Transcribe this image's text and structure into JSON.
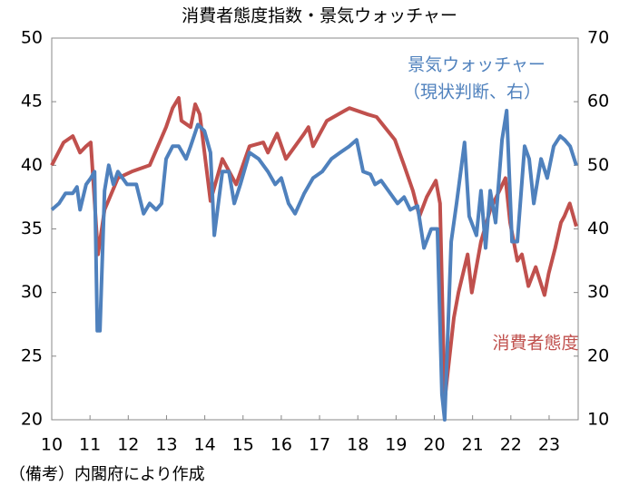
{
  "chart_data": {
    "type": "line",
    "title": "消費者態度指数・景気ウォッチャー",
    "note": "（備考）内閣府により作成",
    "xlim": [
      2010,
      2023.76
    ],
    "xticks": [
      {
        "value": 2010,
        "label": "10"
      },
      {
        "value": 2011,
        "label": "11"
      },
      {
        "value": 2012,
        "label": "12"
      },
      {
        "value": 2013,
        "label": "13"
      },
      {
        "value": 2014,
        "label": "14"
      },
      {
        "value": 2015,
        "label": "15"
      },
      {
        "value": 2016,
        "label": "16"
      },
      {
        "value": 2017,
        "label": "17"
      },
      {
        "value": 2018,
        "label": "18"
      },
      {
        "value": 2019,
        "label": "19"
      },
      {
        "value": 2020,
        "label": "20"
      },
      {
        "value": 2021,
        "label": "21"
      },
      {
        "value": 2022,
        "label": "22"
      },
      {
        "value": 2023,
        "label": "23"
      }
    ],
    "ylim": [
      20,
      50
    ],
    "yticks": [
      20,
      25,
      30,
      35,
      40,
      45,
      50
    ],
    "y2lim": [
      10,
      70
    ],
    "y2ticks": [
      10,
      20,
      30,
      40,
      50,
      60,
      70
    ],
    "series": [
      {
        "name": "消費者態度",
        "color": "#c0504d",
        "axis": "y",
        "x": [
          2010.0,
          2010.31,
          2010.55,
          2010.74,
          2010.9,
          2011.02,
          2011.21,
          2011.38,
          2011.73,
          2012.09,
          2012.56,
          2012.99,
          2013.16,
          2013.32,
          2013.39,
          2013.63,
          2013.75,
          2013.87,
          2014.15,
          2014.46,
          2014.82,
          2015.17,
          2015.53,
          2015.65,
          2015.89,
          2016.12,
          2016.36,
          2016.6,
          2016.71,
          2016.83,
          2017.19,
          2017.78,
          2018.26,
          2018.49,
          2018.97,
          2019.21,
          2019.44,
          2019.61,
          2019.8,
          2020.04,
          2020.15,
          2020.27,
          2020.51,
          2020.63,
          2020.87,
          2020.98,
          2021.22,
          2021.46,
          2021.7,
          2021.86,
          2021.98,
          2022.17,
          2022.29,
          2022.46,
          2022.65,
          2022.88,
          2022.99,
          2023.16,
          2023.31,
          2023.4,
          2023.54,
          2023.71
        ],
        "values": [
          40,
          41.8,
          42.3,
          41,
          41.5,
          41.8,
          33,
          36.5,
          39,
          39.5,
          40,
          43,
          44.5,
          45.3,
          43.5,
          43,
          44.8,
          44,
          37.2,
          40.5,
          38.5,
          41.5,
          41.8,
          41,
          42.5,
          40.5,
          41.5,
          42.5,
          43,
          41.5,
          43.5,
          44.5,
          44,
          43.8,
          42,
          40,
          38,
          36,
          37.5,
          38.8,
          37,
          21.5,
          28,
          30,
          33,
          30,
          34,
          36.5,
          38,
          39,
          35.5,
          32.5,
          33,
          30.5,
          32,
          29.8,
          31.5,
          33.5,
          35.5,
          36,
          37,
          35.2
        ]
      },
      {
        "name": "景気ウォッチャー",
        "sub": "（現状判断、右）",
        "color": "#4f81bd",
        "axis": "y2",
        "x": [
          2010.0,
          2010.19,
          2010.36,
          2010.55,
          2010.66,
          2010.74,
          2010.9,
          2011.02,
          2011.12,
          2011.19,
          2011.26,
          2011.38,
          2011.49,
          2011.61,
          2011.73,
          2011.97,
          2012.21,
          2012.4,
          2012.56,
          2012.73,
          2012.87,
          2012.99,
          2013.16,
          2013.32,
          2013.51,
          2013.63,
          2013.82,
          2013.99,
          2014.15,
          2014.25,
          2014.46,
          2014.63,
          2014.77,
          2014.93,
          2015.17,
          2015.41,
          2015.65,
          2015.84,
          2016.0,
          2016.19,
          2016.36,
          2016.6,
          2016.83,
          2017.07,
          2017.31,
          2017.54,
          2017.78,
          2017.97,
          2018.14,
          2018.33,
          2018.45,
          2018.61,
          2018.8,
          2019.04,
          2019.21,
          2019.37,
          2019.56,
          2019.73,
          2019.92,
          2020.08,
          2020.2,
          2020.27,
          2020.44,
          2020.58,
          2020.79,
          2020.91,
          2021.1,
          2021.22,
          2021.34,
          2021.46,
          2021.6,
          2021.77,
          2021.89,
          2022.03,
          2022.17,
          2022.36,
          2022.48,
          2022.6,
          2022.79,
          2022.95,
          2023.12,
          2023.29,
          2023.41,
          2023.55,
          2023.71
        ],
        "values": [
          43,
          44,
          45.6,
          45.6,
          46.6,
          43,
          47,
          48,
          49,
          24,
          24,
          46,
          50,
          47,
          49,
          47,
          47,
          42.4,
          44,
          43,
          44,
          51,
          53,
          53,
          51,
          53,
          56.4,
          55.4,
          52,
          39,
          49,
          49,
          44,
          47,
          52,
          51,
          49,
          47,
          48,
          44,
          42.4,
          45.6,
          48,
          49,
          51,
          52,
          53,
          54,
          49,
          48.6,
          47,
          47.6,
          46,
          44,
          45,
          43,
          43.6,
          37,
          40,
          40,
          14,
          10,
          38,
          44,
          53.6,
          42,
          39,
          46,
          37,
          46,
          41,
          54,
          58.6,
          38,
          38,
          53,
          51,
          44,
          51,
          48,
          53,
          54.6,
          54,
          53,
          50
        ]
      }
    ]
  }
}
